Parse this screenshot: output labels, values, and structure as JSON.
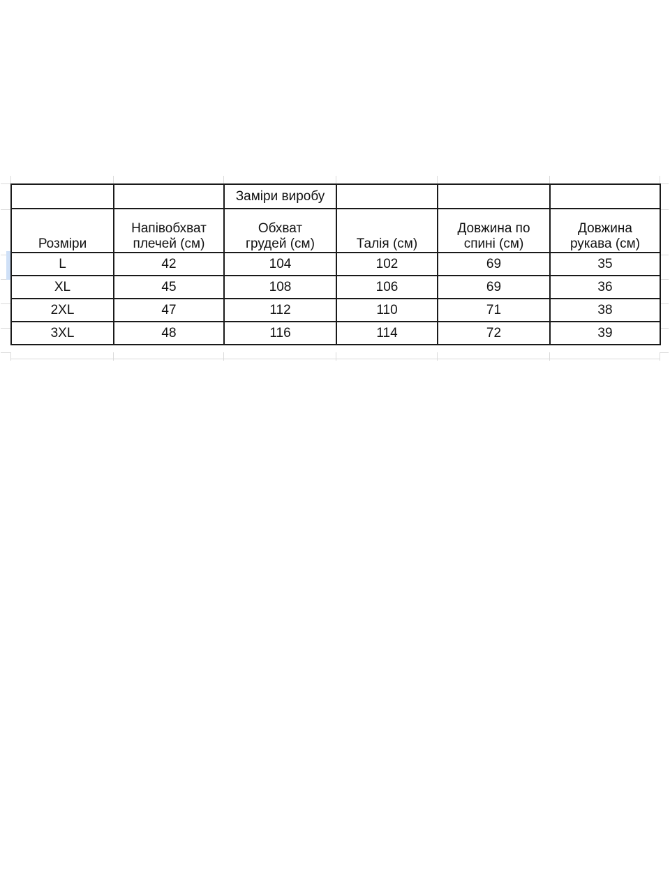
{
  "table": {
    "title": "Заміри виробу",
    "columns": [
      "Розміри",
      "Напівобхват\nплечей (см)",
      "Обхват\nгрудей (см)",
      "Талія (см)",
      "Довжина по\nспині (см)",
      "Довжина\nрукава (см)"
    ],
    "rows": [
      {
        "size": "L",
        "values": [
          "42",
          "104",
          "102",
          "69",
          "35"
        ]
      },
      {
        "size": "XL",
        "values": [
          "45",
          "108",
          "106",
          "69",
          "36"
        ]
      },
      {
        "size": "2XL",
        "values": [
          "47",
          "112",
          "110",
          "71",
          "38"
        ]
      },
      {
        "size": "3XL",
        "values": [
          "48",
          "116",
          "114",
          "72",
          "39"
        ]
      }
    ],
    "colors": {
      "header_fill": "#c9daf8",
      "border": "#1a1a1a",
      "gridline": "#dadada",
      "title_separator": "#b9c4da",
      "selection": "#cfe0f7",
      "text": "#111111"
    }
  }
}
